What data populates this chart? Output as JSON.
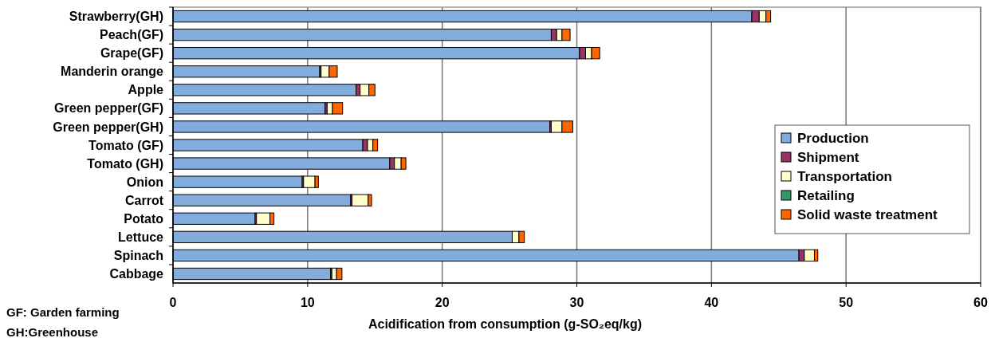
{
  "chart_data": {
    "type": "bar",
    "orientation": "horizontal",
    "stacked": true,
    "categories": [
      "Strawberry(GH)",
      "Peach(GF)",
      "Grape(GF)",
      "Manderin orange",
      "Apple",
      "Green pepper(GF)",
      "Green pepper(GH)",
      "Tomato (GF)",
      "Tomato (GH)",
      "Onion",
      "Carrot",
      "Potato",
      "Lettuce",
      "Spinach",
      "Cabbage"
    ],
    "series": [
      {
        "name": "Production",
        "color": "#82acdc",
        "values": [
          43.0,
          28.1,
          30.2,
          10.9,
          13.6,
          11.3,
          28.0,
          14.1,
          16.1,
          9.6,
          13.2,
          6.1,
          25.2,
          46.5,
          11.7
        ]
      },
      {
        "name": "Shipment",
        "color": "#993366",
        "values": [
          0.55,
          0.4,
          0.45,
          0.1,
          0.3,
          0.15,
          0.1,
          0.35,
          0.35,
          0.1,
          0.1,
          0.1,
          null,
          0.4,
          0.1
        ]
      },
      {
        "name": "Transportation",
        "color": "#ffffcc",
        "values": [
          0.5,
          0.4,
          0.45,
          0.6,
          0.65,
          0.4,
          0.8,
          0.4,
          0.5,
          0.85,
          1.2,
          1.0,
          0.5,
          0.75,
          0.35
        ]
      },
      {
        "name": "Retailing",
        "color": "#339966",
        "values": [
          0,
          0,
          0,
          0,
          0,
          0,
          0,
          0,
          0,
          0,
          0,
          0,
          0,
          0,
          0
        ]
      },
      {
        "name": "Solid waste treatment",
        "color": "#ff6600",
        "values": [
          0.35,
          0.6,
          0.6,
          0.6,
          0.45,
          0.75,
          0.8,
          0.35,
          0.35,
          0.25,
          0.25,
          0.3,
          0.4,
          0.25,
          0.4
        ]
      }
    ],
    "xlim": [
      0,
      60
    ],
    "xticks": [
      0,
      10,
      20,
      30,
      40,
      50,
      60
    ],
    "xlabel": "Acidification from consumption (g-SO₂eq/kg)",
    "annotations": [
      "GF: Garden farming",
      "GH:Greenhouse"
    ],
    "grid": "x",
    "legend": "right"
  }
}
